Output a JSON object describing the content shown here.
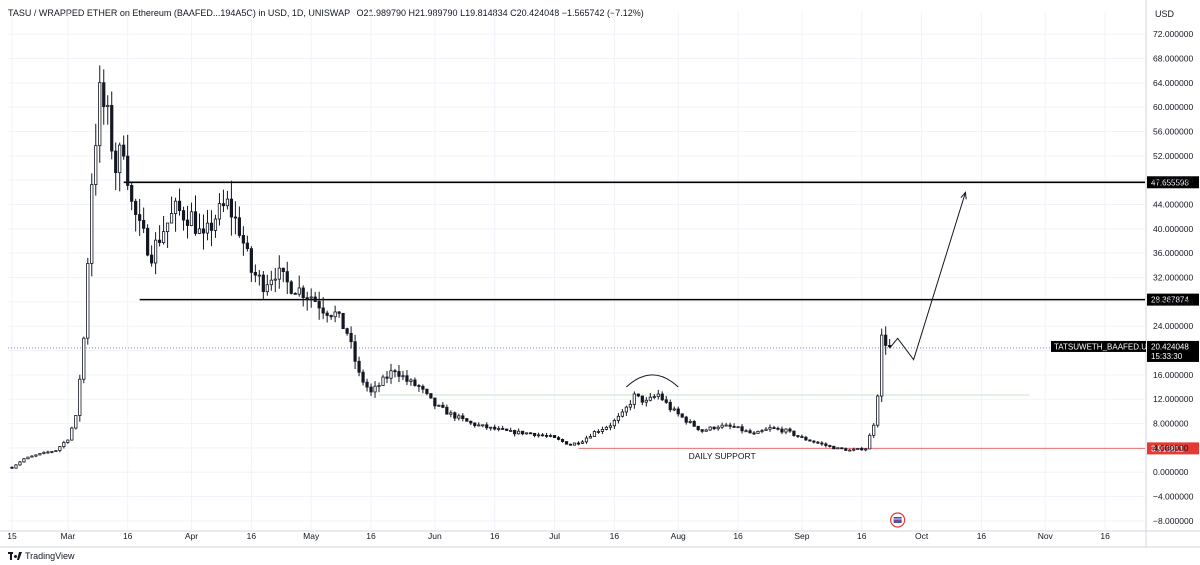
{
  "header": {
    "symbol": "TASU / WRAPPED ETHER on Ethereum (BAAFED...194A5C) in USD, 1D, UNISWAP",
    "open": "O21.989790",
    "high": "H21.989790",
    "low": "L19.814834",
    "close": "C20.424048",
    "change": "−1.565742 (−7.12%)"
  },
  "currency_label": "USD",
  "branding": "TradingView",
  "colors": {
    "up": "#26a69a",
    "down": "#131722",
    "grid": "#f0f3fa",
    "level_line": "#000000",
    "support_line": "#e57373",
    "resistance_dotted": "#c8e6c9",
    "price_tag_bg": "#000000",
    "support_tag_bg": "#e53935"
  },
  "chart_data": {
    "type": "candlestick",
    "title": "TASU / WRAPPED ETHER on Ethereum (BAAFED...194A5C) in USD, 1D, UNISWAP",
    "y_ticks": [
      72,
      68,
      64,
      60,
      56,
      52,
      48,
      44,
      40,
      36,
      32,
      28,
      24,
      20,
      16,
      12,
      8,
      4,
      0,
      -4,
      -8
    ],
    "y_tick_labels": [
      "72.000000",
      "68.000000",
      "64.000000",
      "60.000000",
      "56.000000",
      "52.000000",
      "48.000000",
      "44.000000",
      "40.000000",
      "36.000000",
      "32.000000",
      "28.000000",
      "24.000000",
      "20.000000",
      "16.000000",
      "12.000000",
      "8.000000",
      "4.000000",
      "0.000000",
      "−4.000000",
      "−8.000000"
    ],
    "ylim": [
      -9.5,
      74
    ],
    "x_ticks": [
      {
        "label": "15",
        "date": "2023-02-15"
      },
      {
        "label": "Mar",
        "date": "2023-03-01"
      },
      {
        "label": "16",
        "date": "2023-03-16"
      },
      {
        "label": "Apr",
        "date": "2023-04-01"
      },
      {
        "label": "16",
        "date": "2023-04-16"
      },
      {
        "label": "May",
        "date": "2023-05-01"
      },
      {
        "label": "16",
        "date": "2023-05-16"
      },
      {
        "label": "Jun",
        "date": "2023-06-01"
      },
      {
        "label": "16",
        "date": "2023-06-16"
      },
      {
        "label": "Jul",
        "date": "2023-07-01"
      },
      {
        "label": "16",
        "date": "2023-07-16"
      },
      {
        "label": "Aug",
        "date": "2023-08-01"
      },
      {
        "label": "16",
        "date": "2023-08-16"
      },
      {
        "label": "Sep",
        "date": "2023-09-01"
      },
      {
        "label": "16",
        "date": "2023-09-16"
      },
      {
        "label": "Oct",
        "date": "2023-10-01"
      },
      {
        "label": "16",
        "date": "2023-10-16"
      },
      {
        "label": "Nov",
        "date": "2023-11-01"
      },
      {
        "label": "16",
        "date": "2023-11-16"
      }
    ],
    "xlim": [
      "2023-02-14",
      "2023-11-26"
    ],
    "price_path": [
      [
        "2023-02-15",
        0.8
      ],
      [
        "2023-02-18",
        2.2
      ],
      [
        "2023-02-22",
        3.0
      ],
      [
        "2023-02-26",
        3.6
      ],
      [
        "2023-03-01",
        5.5
      ],
      [
        "2023-03-03",
        9.0
      ],
      [
        "2023-03-05",
        22.0
      ],
      [
        "2023-03-07",
        48.0
      ],
      [
        "2023-03-09",
        62.0
      ],
      [
        "2023-03-11",
        58.0
      ],
      [
        "2023-03-13",
        50.0
      ],
      [
        "2023-03-15",
        54.0
      ],
      [
        "2023-03-17",
        44.0
      ],
      [
        "2023-03-19",
        40.0
      ],
      [
        "2023-03-22",
        36.0
      ],
      [
        "2023-03-25",
        40.0
      ],
      [
        "2023-03-28",
        43.0
      ],
      [
        "2023-04-01",
        42.0
      ],
      [
        "2023-04-04",
        38.0
      ],
      [
        "2023-04-07",
        42.0
      ],
      [
        "2023-04-10",
        44.0
      ],
      [
        "2023-04-13",
        40.0
      ],
      [
        "2023-04-16",
        33.0
      ],
      [
        "2023-04-19",
        31.0
      ],
      [
        "2023-04-22",
        33.0
      ],
      [
        "2023-04-25",
        31.0
      ],
      [
        "2023-04-28",
        30.0
      ],
      [
        "2023-05-01",
        29.0
      ],
      [
        "2023-05-04",
        27.0
      ],
      [
        "2023-05-07",
        26.0
      ],
      [
        "2023-05-10",
        23.0
      ],
      [
        "2023-05-13",
        16.0
      ],
      [
        "2023-05-16",
        13.0
      ],
      [
        "2023-05-19",
        15.0
      ],
      [
        "2023-05-22",
        17.0
      ],
      [
        "2023-05-25",
        15.0
      ],
      [
        "2023-05-28",
        14.0
      ],
      [
        "2023-06-01",
        11.0
      ],
      [
        "2023-06-05",
        9.5
      ],
      [
        "2023-06-10",
        8.0
      ],
      [
        "2023-06-15",
        7.2
      ],
      [
        "2023-06-20",
        6.6
      ],
      [
        "2023-06-25",
        6.4
      ],
      [
        "2023-06-30",
        5.8
      ],
      [
        "2023-07-05",
        4.5
      ],
      [
        "2023-07-08",
        5.2
      ],
      [
        "2023-07-11",
        6.6
      ],
      [
        "2023-07-15",
        7.8
      ],
      [
        "2023-07-18",
        9.5
      ],
      [
        "2023-07-21",
        12.5
      ],
      [
        "2023-07-24",
        11.5
      ],
      [
        "2023-07-27",
        12.8
      ],
      [
        "2023-07-30",
        10.5
      ],
      [
        "2023-08-03",
        8.5
      ],
      [
        "2023-08-07",
        6.8
      ],
      [
        "2023-08-11",
        7.6
      ],
      [
        "2023-08-15",
        7.4
      ],
      [
        "2023-08-20",
        6.2
      ],
      [
        "2023-08-24",
        7.2
      ],
      [
        "2023-08-28",
        6.8
      ],
      [
        "2023-09-01",
        5.6
      ],
      [
        "2023-09-05",
        4.8
      ],
      [
        "2023-09-09",
        4.0
      ],
      [
        "2023-09-13",
        3.6
      ],
      [
        "2023-09-17",
        3.9
      ],
      [
        "2023-09-19",
        8.0
      ],
      [
        "2023-09-20",
        13.0
      ],
      [
        "2023-09-21",
        22.0
      ],
      [
        "2023-09-22",
        21.5
      ],
      [
        "2023-09-23",
        20.4
      ]
    ],
    "last_close": 20.424048,
    "levels": [
      {
        "value": 47.655598,
        "label": "47.655598",
        "style": "solid",
        "from": "2023-03-15"
      },
      {
        "value": 28.367874,
        "label": "28.367874",
        "style": "solid",
        "from": "2023-03-19"
      },
      {
        "value": 12.7,
        "style": "resistance",
        "from": "2023-05-18",
        "to": "2023-10-28"
      },
      {
        "value": 3.913811,
        "label": "3.913811",
        "style": "support",
        "from": "2023-07-07",
        "label_color": "red"
      }
    ],
    "symbol_tag": {
      "name": "TATSUWETH_BAAFED.USD",
      "price": "20.424048",
      "countdown": "15:33:30"
    },
    "projection": [
      [
        "2023-09-23",
        20.4
      ],
      [
        "2023-09-25",
        22.0
      ],
      [
        "2023-09-29",
        18.5
      ],
      [
        "2023-10-12",
        46.0
      ]
    ],
    "arc_annotation": {
      "from": "2023-07-19",
      "to": "2023-08-01",
      "peak": 15.2
    },
    "annotations": [
      {
        "text": "DAILY SUPPORT",
        "date": "2023-08-12",
        "value": 2.2
      }
    ]
  }
}
